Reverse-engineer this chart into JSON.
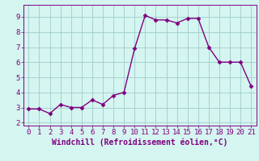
{
  "x": [
    0,
    1,
    2,
    3,
    4,
    5,
    6,
    7,
    8,
    9,
    10,
    11,
    12,
    13,
    14,
    15,
    16,
    17,
    18,
    19,
    20,
    21
  ],
  "y": [
    2.9,
    2.9,
    2.6,
    3.2,
    3.0,
    3.0,
    3.5,
    3.2,
    3.8,
    4.0,
    6.9,
    9.1,
    8.8,
    8.8,
    8.6,
    8.9,
    8.9,
    7.0,
    6.0,
    6.0,
    6.0,
    4.4
  ],
  "line_color": "#800080",
  "marker": "D",
  "marker_size": 2.5,
  "line_width": 1.0,
  "bg_color": "#d4f5f0",
  "grid_color": "#a0cccc",
  "xlabel": "Windchill (Refroidissement éolien,°C)",
  "xlabel_fontsize": 7,
  "tick_fontsize": 6.5,
  "xlim": [
    -0.5,
    21.5
  ],
  "ylim": [
    1.8,
    9.8
  ],
  "yticks": [
    2,
    3,
    4,
    5,
    6,
    7,
    8,
    9
  ],
  "xticks": [
    0,
    1,
    2,
    3,
    4,
    5,
    6,
    7,
    8,
    9,
    10,
    11,
    12,
    13,
    14,
    15,
    16,
    17,
    18,
    19,
    20,
    21
  ]
}
